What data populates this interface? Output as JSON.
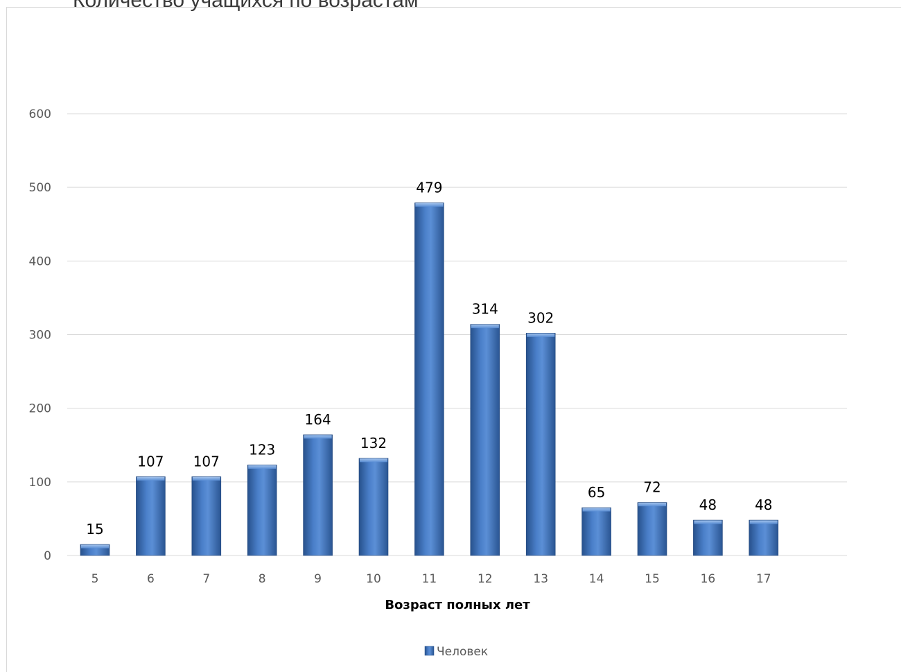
{
  "chart_data": {
    "type": "bar",
    "title": "Количество учащихся по возрастам",
    "xlabel": "Возраст полных лет",
    "ylabel": "",
    "categories": [
      "5",
      "6",
      "7",
      "8",
      "9",
      "10",
      "11",
      "12",
      "13",
      "14",
      "15",
      "16",
      "17"
    ],
    "series": [
      {
        "name": "Человек",
        "values": [
          15,
          107,
          107,
          123,
          164,
          132,
          479,
          314,
          302,
          65,
          72,
          48,
          48
        ]
      }
    ],
    "ylim": [
      0,
      600
    ],
    "yticks": [
      0,
      100,
      200,
      300,
      400,
      500,
      600
    ],
    "grid": true,
    "legend": "bottom",
    "colors": {
      "bar_dark": "#27518c",
      "bar_mid": "#4a7fc9",
      "bar_light": "#7aa8e4",
      "gridline": "#d9d9d9"
    }
  }
}
